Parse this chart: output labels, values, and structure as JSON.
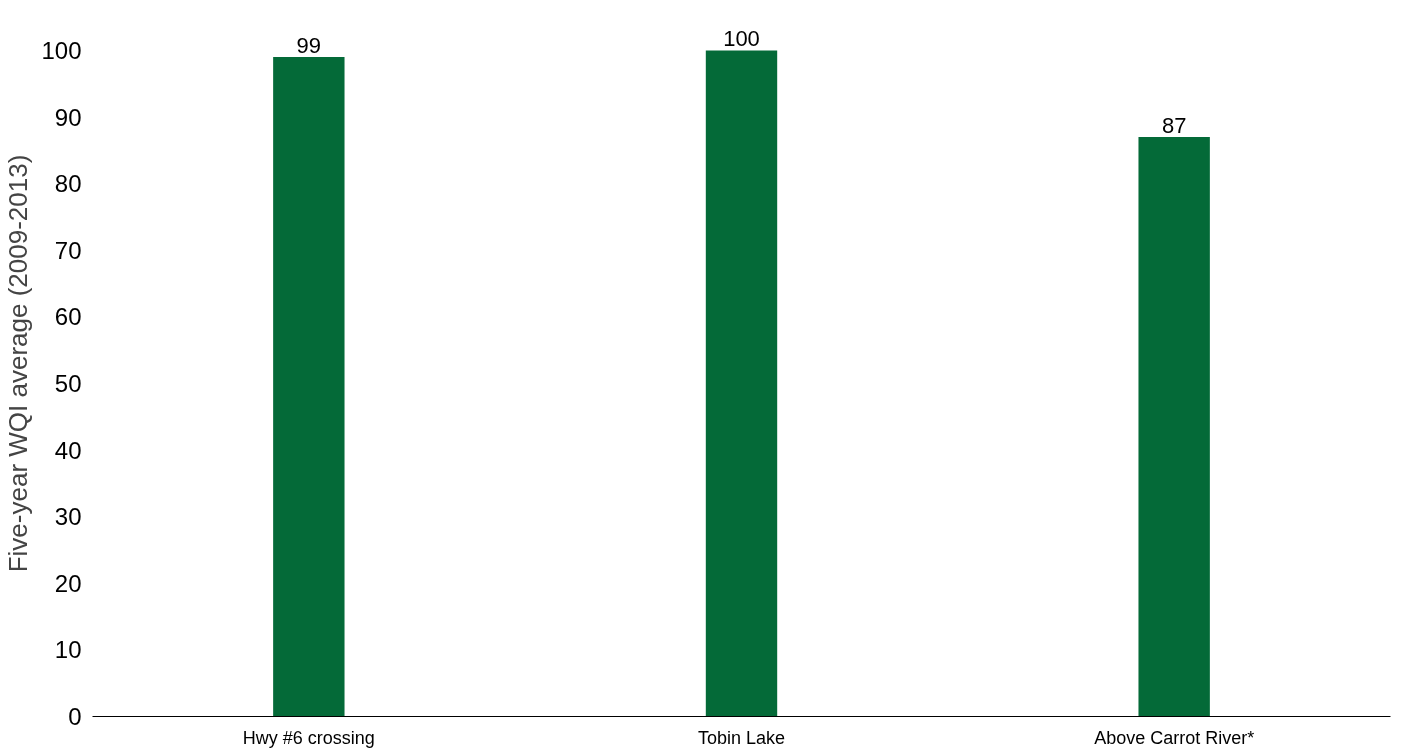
{
  "chart_data": {
    "type": "bar",
    "ylabel": "Five-year WQI average (2009-2013)",
    "categories": [
      "Hwy #6 crossing",
      "Tobin Lake",
      "Above Carrot River*"
    ],
    "values": [
      99,
      100,
      87
    ],
    "color": "#046a38",
    "ylim": [
      0,
      100
    ],
    "yticks": [
      0,
      10,
      20,
      30,
      40,
      50,
      60,
      70,
      80,
      90,
      100
    ],
    "data_labels": true,
    "grid": false,
    "legend": false
  }
}
